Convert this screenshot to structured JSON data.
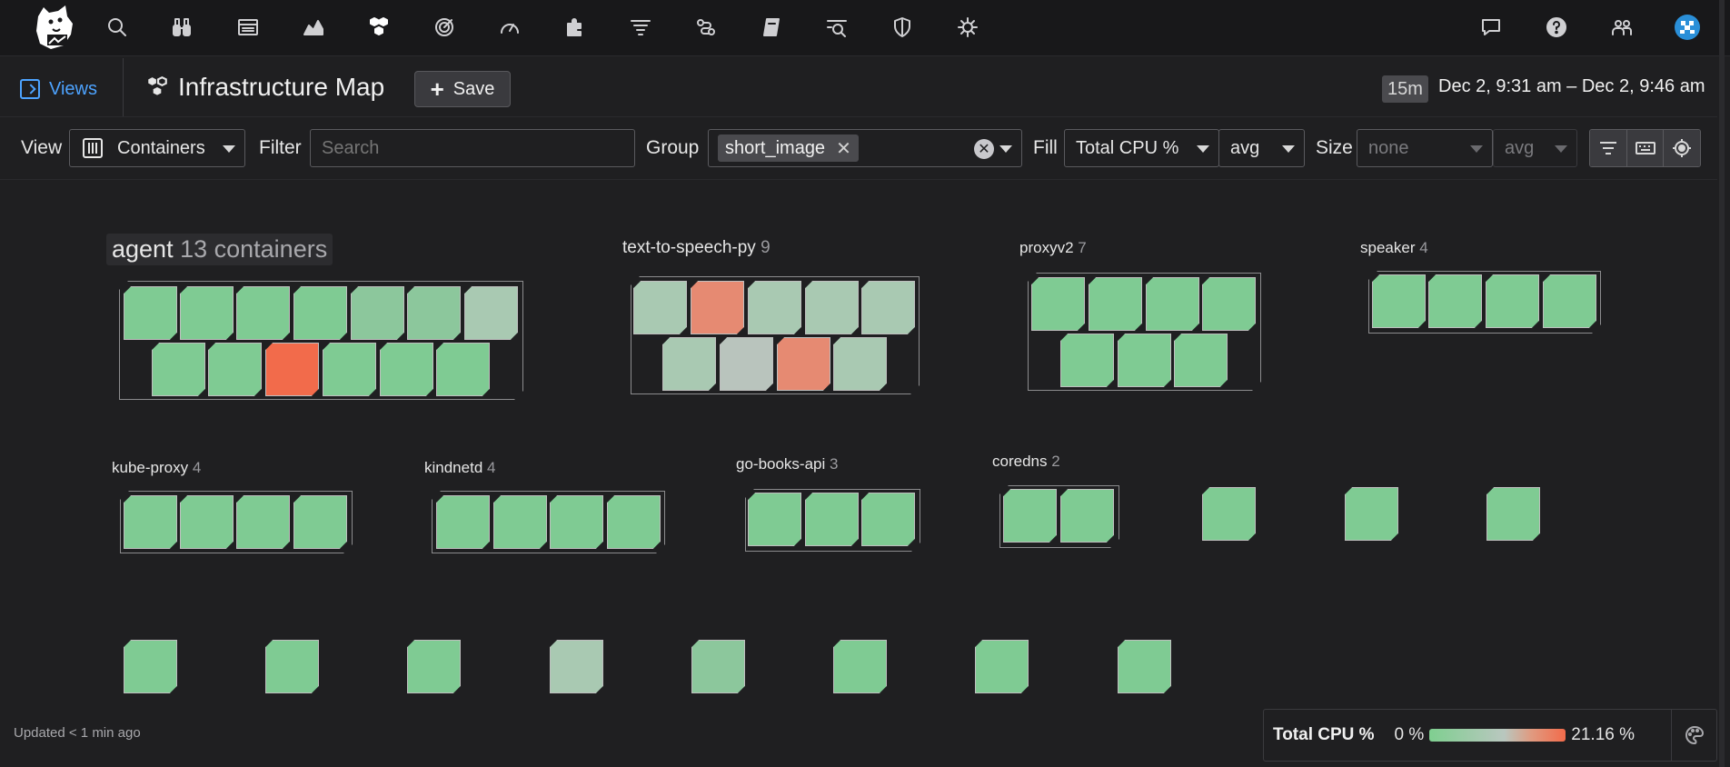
{
  "nav": {
    "icons": [
      "dog-logo-icon",
      "search-icon",
      "binoculars-icon",
      "dashboard-icon",
      "chart-area-icon",
      "infrastructure-icon",
      "apm-icon",
      "gauge-icon",
      "integrations-icon",
      "logs-icon",
      "link-icon",
      "notebook-icon",
      "security-icon",
      "shield-icon",
      "bug-icon",
      "chat-icon",
      "help-icon",
      "team-icon",
      "avatar-icon"
    ]
  },
  "header": {
    "views_label": "Views",
    "title": "Infrastructure Map",
    "save_label": "Save",
    "time_badge": "15m",
    "time_range": "Dec 2, 9:31 am – Dec 2, 9:46 am"
  },
  "controls": {
    "view_label": "View",
    "view_value": "Containers",
    "filter_label": "Filter",
    "filter_placeholder": "Search",
    "group_label": "Group",
    "group_tag": "short_image",
    "group_tag_remove": "✕",
    "fill_label": "Fill",
    "fill_metric": "Total CPU %",
    "fill_agg": "avg",
    "size_label": "Size",
    "size_metric": "none",
    "size_agg": "avg"
  },
  "groups": [
    {
      "name": "agent",
      "count": "13 containers"
    },
    {
      "name": "text-to-speech-py",
      "count": "9"
    },
    {
      "name": "proxyv2",
      "count": "7"
    },
    {
      "name": "speaker",
      "count": "4"
    },
    {
      "name": "kube-proxy",
      "count": "4"
    },
    {
      "name": "kindnetd",
      "count": "4"
    },
    {
      "name": "go-books-api",
      "count": "3"
    },
    {
      "name": "coredns",
      "count": "2"
    }
  ],
  "colors": {
    "green": "#7fcb93",
    "green_light": "#8cc79c",
    "grey_green": "#a9c9b2",
    "grey": "#b9c4bd",
    "salmon": "#e68a72",
    "orange": "#f26b4b"
  },
  "footer": {
    "updated": "Updated < 1 min ago"
  },
  "legend": {
    "title": "Total CPU %",
    "min": "0 %",
    "max": "21.16 %"
  }
}
